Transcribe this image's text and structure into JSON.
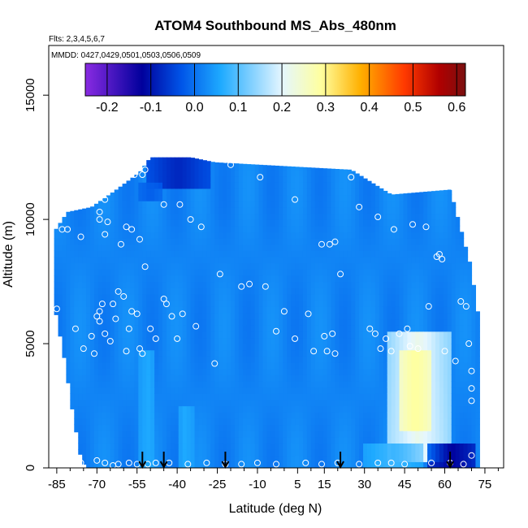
{
  "chart_data": {
    "type": "heatmap",
    "title": "ATOM4 Southbound MS_Abs_480nm",
    "flights_note": "Flts: 2,3,4,5,6,7",
    "dates_note": "MMDD: 0427,0429,0501,0503,0506,0509",
    "xlabel": "Latitude (deg N)",
    "ylabel": "Altitude (m)",
    "xlim": [
      -88,
      82
    ],
    "ylim": [
      0,
      17000
    ],
    "x_ticks": [
      -85,
      -70,
      -55,
      -40,
      -25,
      -10,
      5,
      15,
      30,
      45,
      60,
      75
    ],
    "x_ticks_minor": [
      -80,
      -75,
      -65,
      -60,
      -50,
      -45,
      -35,
      -30,
      -20,
      -15,
      -5,
      0,
      10,
      20,
      25,
      35,
      40,
      50,
      55,
      65,
      70,
      80
    ],
    "y_ticks": [
      0,
      5000,
      10000,
      15000
    ],
    "colorbar": {
      "range": [
        -0.25,
        0.62
      ],
      "ticks": [
        -0.2,
        -0.1,
        0.0,
        0.1,
        0.2,
        0.3,
        0.4,
        0.5,
        0.6
      ],
      "tick_labels": [
        "-0.2",
        "-0.1",
        "0.0",
        "0.1",
        "0.2",
        "0.3",
        "0.4",
        "0.5",
        "0.6"
      ],
      "colors": [
        "#8a2be2",
        "#00009c",
        "#0055e8",
        "#1eaaff",
        "#e4f6ff",
        "#ffff9e",
        "#ffb000",
        "#ff3a00",
        "#b00000",
        "#7a1010"
      ],
      "stops": [
        -0.25,
        -0.12,
        -0.03,
        0.06,
        0.2,
        0.29,
        0.38,
        0.48,
        0.56,
        0.62
      ]
    },
    "field": {
      "background_value": 0.02,
      "columns_lat_edges": [
        -86,
        72
      ],
      "top_altitude_profile": [
        {
          "lat": -86,
          "alt": 9500
        },
        {
          "lat": -81,
          "alt": 10300
        },
        {
          "lat": -72,
          "alt": 10500
        },
        {
          "lat": -64,
          "alt": 11100
        },
        {
          "lat": -54,
          "alt": 11900
        },
        {
          "lat": -50,
          "alt": 12500
        },
        {
          "lat": -35,
          "alt": 12500
        },
        {
          "lat": -26,
          "alt": 12300
        },
        {
          "lat": 25,
          "alt": 12000
        },
        {
          "lat": 40,
          "alt": 11000
        },
        {
          "lat": 62,
          "alt": 11200
        },
        {
          "lat": 70,
          "alt": 8000
        },
        {
          "lat": 72,
          "alt": 6300
        }
      ],
      "bottom_altitude_profile": [
        {
          "lat": -86,
          "alt": 6600
        },
        {
          "lat": -82,
          "alt": 4300
        },
        {
          "lat": -79,
          "alt": 2200
        },
        {
          "lat": -76,
          "alt": 400
        },
        {
          "lat": -74,
          "alt": 0
        },
        {
          "lat": 72,
          "alt": 0
        }
      ],
      "features": [
        {
          "name": "upper-dark",
          "lat": [
            -51,
            -28
          ],
          "alt": [
            11300,
            12500
          ],
          "value": -0.08
        },
        {
          "name": "upper-dark-2",
          "lat": [
            -55,
            -45
          ],
          "alt": [
            10700,
            11600
          ],
          "value": -0.02
        },
        {
          "name": "plume",
          "lat": [
            38,
            62
          ],
          "alt": [
            200,
            5500
          ],
          "value": 0.22
        },
        {
          "name": "plume-core",
          "lat": [
            43,
            55
          ],
          "alt": [
            1500,
            4800
          ],
          "value": 0.29
        },
        {
          "name": "surface-dark",
          "lat": [
            53,
            72
          ],
          "alt": [
            0,
            900
          ],
          "value": -0.12
        },
        {
          "name": "surface-light",
          "lat": [
            30,
            52
          ],
          "alt": [
            0,
            1000
          ],
          "value": 0.08
        },
        {
          "name": "column-light",
          "lat": [
            -54,
            -48
          ],
          "alt": [
            0,
            4800
          ],
          "value": 0.06
        },
        {
          "name": "column-light-2",
          "lat": [
            -40,
            -34
          ],
          "alt": [
            0,
            2600
          ],
          "value": 0.06
        }
      ]
    },
    "sample_points": [
      {
        "lat": -85,
        "alt": 6400
      },
      {
        "lat": -83,
        "alt": 9600
      },
      {
        "lat": -81,
        "alt": 9600
      },
      {
        "lat": -76,
        "alt": 9300
      },
      {
        "lat": -78,
        "alt": 5600
      },
      {
        "lat": -75,
        "alt": 4800
      },
      {
        "lat": -72,
        "alt": 5300
      },
      {
        "lat": -71,
        "alt": 4600
      },
      {
        "lat": -70,
        "alt": 6100
      },
      {
        "lat": -69,
        "alt": 6300
      },
      {
        "lat": -69,
        "alt": 5900
      },
      {
        "lat": -69,
        "alt": 10300
      },
      {
        "lat": -69,
        "alt": 10000
      },
      {
        "lat": -68,
        "alt": 6600
      },
      {
        "lat": -67,
        "alt": 5400
      },
      {
        "lat": -67,
        "alt": 9400
      },
      {
        "lat": -67,
        "alt": 10800
      },
      {
        "lat": -66,
        "alt": 9900
      },
      {
        "lat": -65,
        "alt": 5100
      },
      {
        "lat": -64,
        "alt": 6600
      },
      {
        "lat": -63,
        "alt": 6000
      },
      {
        "lat": -62,
        "alt": 7100
      },
      {
        "lat": -61,
        "alt": 9000
      },
      {
        "lat": -60,
        "alt": 6900
      },
      {
        "lat": -59,
        "alt": 4700
      },
      {
        "lat": -58,
        "alt": 5600
      },
      {
        "lat": -57,
        "alt": 6300
      },
      {
        "lat": -55,
        "alt": 6200
      },
      {
        "lat": -54,
        "alt": 4800
      },
      {
        "lat": -53,
        "alt": 4600
      },
      {
        "lat": -59,
        "alt": 9700
      },
      {
        "lat": -57,
        "alt": 9600
      },
      {
        "lat": -54,
        "alt": 9200
      },
      {
        "lat": -56,
        "alt": 11800
      },
      {
        "lat": -53,
        "alt": 11800
      },
      {
        "lat": -52,
        "alt": 12000
      },
      {
        "lat": -52,
        "alt": 8100
      },
      {
        "lat": -50,
        "alt": 5600
      },
      {
        "lat": -48,
        "alt": 5200
      },
      {
        "lat": -45,
        "alt": 6800
      },
      {
        "lat": -45,
        "alt": 10600
      },
      {
        "lat": -44,
        "alt": 6600
      },
      {
        "lat": -42,
        "alt": 6100
      },
      {
        "lat": -40,
        "alt": 5200
      },
      {
        "lat": -39,
        "alt": 10600
      },
      {
        "lat": -38,
        "alt": 6200
      },
      {
        "lat": -35,
        "alt": 10000
      },
      {
        "lat": -33,
        "alt": 5700
      },
      {
        "lat": -31,
        "alt": 9700
      },
      {
        "lat": -26,
        "alt": 4200
      },
      {
        "lat": -24,
        "alt": 7800
      },
      {
        "lat": -22,
        "alt": 12400
      },
      {
        "lat": -20,
        "alt": 12200
      },
      {
        "lat": -16,
        "alt": 7300
      },
      {
        "lat": -13,
        "alt": 7400
      },
      {
        "lat": -9,
        "alt": 11700
      },
      {
        "lat": -7,
        "alt": 7300
      },
      {
        "lat": -3,
        "alt": 5500
      },
      {
        "lat": 0,
        "alt": 6300
      },
      {
        "lat": 4,
        "alt": 10800
      },
      {
        "lat": 4,
        "alt": 5200
      },
      {
        "lat": 9,
        "alt": 6200
      },
      {
        "lat": 11,
        "alt": 4700
      },
      {
        "lat": 14,
        "alt": 9000
      },
      {
        "lat": 15,
        "alt": 5300
      },
      {
        "lat": 16,
        "alt": 4700
      },
      {
        "lat": 17,
        "alt": 9000
      },
      {
        "lat": 18,
        "alt": 5400
      },
      {
        "lat": 19,
        "alt": 9100
      },
      {
        "lat": 19,
        "alt": 4600
      },
      {
        "lat": 21,
        "alt": 7800
      },
      {
        "lat": 25,
        "alt": 11700
      },
      {
        "lat": 28,
        "alt": 10500
      },
      {
        "lat": 32,
        "alt": 5600
      },
      {
        "lat": 34,
        "alt": 5400
      },
      {
        "lat": 35,
        "alt": 10100
      },
      {
        "lat": 36,
        "alt": 4800
      },
      {
        "lat": 38,
        "alt": 5200
      },
      {
        "lat": 40,
        "alt": 4700
      },
      {
        "lat": 41,
        "alt": 9600
      },
      {
        "lat": 43,
        "alt": 5400
      },
      {
        "lat": 46,
        "alt": 5600
      },
      {
        "lat": 47,
        "alt": 4900
      },
      {
        "lat": 48,
        "alt": 9800
      },
      {
        "lat": 50,
        "alt": 4800
      },
      {
        "lat": 53,
        "alt": 9700
      },
      {
        "lat": 54,
        "alt": 6500
      },
      {
        "lat": 57,
        "alt": 8500
      },
      {
        "lat": 58,
        "alt": 8600
      },
      {
        "lat": 59,
        "alt": 8400
      },
      {
        "lat": 60,
        "alt": 4700
      },
      {
        "lat": 63,
        "alt": 11300
      },
      {
        "lat": 64,
        "alt": 4300
      },
      {
        "lat": 66,
        "alt": 6700
      },
      {
        "lat": 68,
        "alt": 6500
      },
      {
        "lat": 69,
        "alt": 5000
      },
      {
        "lat": 70,
        "alt": 3900
      },
      {
        "lat": 70,
        "alt": 3200
      },
      {
        "lat": 70,
        "alt": 2700
      },
      {
        "lat": -76,
        "alt": 200
      },
      {
        "lat": -70,
        "alt": 300
      },
      {
        "lat": -67,
        "alt": 200
      },
      {
        "lat": -64,
        "alt": 100
      },
      {
        "lat": -62,
        "alt": 150
      },
      {
        "lat": -58,
        "alt": 200
      },
      {
        "lat": -55,
        "alt": 150
      },
      {
        "lat": -51,
        "alt": 150
      },
      {
        "lat": -48,
        "alt": 200
      },
      {
        "lat": -43,
        "alt": 200
      },
      {
        "lat": -36,
        "alt": 150
      },
      {
        "lat": -29,
        "alt": 200
      },
      {
        "lat": -22,
        "alt": 150
      },
      {
        "lat": -16,
        "alt": 150
      },
      {
        "lat": -10,
        "alt": 200
      },
      {
        "lat": -3,
        "alt": 150
      },
      {
        "lat": 8,
        "alt": 200
      },
      {
        "lat": 14,
        "alt": 150
      },
      {
        "lat": 20,
        "alt": 200
      },
      {
        "lat": 28,
        "alt": 150
      },
      {
        "lat": 35,
        "alt": 200
      },
      {
        "lat": 40,
        "alt": 200
      },
      {
        "lat": 45,
        "alt": 150
      },
      {
        "lat": 55,
        "alt": 200
      },
      {
        "lat": 62,
        "alt": 200
      },
      {
        "lat": 67,
        "alt": 150
      },
      {
        "lat": 70,
        "alt": 500
      }
    ],
    "arrow_latitudes": [
      -53,
      -45,
      -22,
      21,
      62
    ]
  }
}
